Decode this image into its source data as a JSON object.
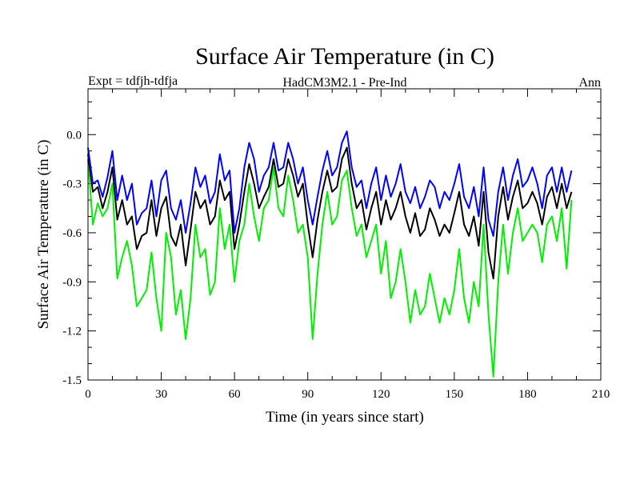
{
  "chart_data": {
    "type": "line",
    "title": "Surface Air Temperature (in C)",
    "subtitle_left": "Expt = tdfjh-tdfja",
    "subtitle_center": "HadCM3M2.1 - Pre-Ind",
    "subtitle_right": "Ann",
    "xlabel": "Time (in years since start)",
    "ylabel": "Surface Air Temperature (in C)",
    "xlim": [
      0,
      210
    ],
    "ylim": [
      -1.5,
      0.28
    ],
    "xticks": [
      0,
      30,
      60,
      90,
      120,
      150,
      180,
      210
    ],
    "yticks": [
      -1.5,
      -1.2,
      -0.9,
      -0.6,
      -0.3,
      0.0
    ],
    "ytick_labels": [
      "-1.5",
      "-1.2",
      "-0.9",
      "-0.6",
      "-0.3",
      "0.0"
    ],
    "x": [
      0,
      2,
      4,
      6,
      8,
      10,
      12,
      14,
      16,
      18,
      20,
      22,
      24,
      26,
      28,
      30,
      32,
      34,
      36,
      38,
      40,
      42,
      44,
      46,
      48,
      50,
      52,
      54,
      56,
      58,
      60,
      62,
      64,
      66,
      68,
      70,
      72,
      74,
      76,
      78,
      80,
      82,
      84,
      86,
      88,
      90,
      92,
      94,
      96,
      98,
      100,
      102,
      104,
      106,
      108,
      110,
      112,
      114,
      116,
      118,
      120,
      122,
      124,
      126,
      128,
      130,
      132,
      134,
      136,
      138,
      140,
      142,
      144,
      146,
      148,
      150,
      152,
      154,
      156,
      158,
      160,
      162,
      164,
      166,
      168,
      170,
      172,
      174,
      176,
      178,
      180,
      182,
      184,
      186,
      188,
      190,
      192,
      194,
      196,
      198
    ],
    "series": [
      {
        "name": "blue",
        "color": "#0000ff",
        "values": [
          -0.08,
          -0.3,
          -0.28,
          -0.38,
          -0.26,
          -0.1,
          -0.4,
          -0.25,
          -0.4,
          -0.3,
          -0.55,
          -0.48,
          -0.45,
          -0.28,
          -0.5,
          -0.28,
          -0.22,
          -0.45,
          -0.52,
          -0.4,
          -0.6,
          -0.42,
          -0.2,
          -0.32,
          -0.25,
          -0.42,
          -0.35,
          -0.12,
          -0.28,
          -0.22,
          -0.6,
          -0.45,
          -0.2,
          -0.05,
          -0.15,
          -0.35,
          -0.25,
          -0.2,
          -0.05,
          -0.22,
          -0.2,
          -0.05,
          -0.15,
          -0.3,
          -0.2,
          -0.4,
          -0.55,
          -0.38,
          -0.22,
          -0.1,
          -0.25,
          -0.2,
          -0.05,
          0.02,
          -0.2,
          -0.32,
          -0.28,
          -0.45,
          -0.3,
          -0.2,
          -0.4,
          -0.25,
          -0.38,
          -0.3,
          -0.18,
          -0.35,
          -0.42,
          -0.32,
          -0.45,
          -0.38,
          -0.28,
          -0.32,
          -0.45,
          -0.35,
          -0.4,
          -0.3,
          -0.18,
          -0.38,
          -0.45,
          -0.32,
          -0.5,
          -0.2,
          -0.52,
          -0.62,
          -0.35,
          -0.2,
          -0.4,
          -0.25,
          -0.15,
          -0.32,
          -0.28,
          -0.2,
          -0.3,
          -0.45,
          -0.25,
          -0.2,
          -0.35,
          -0.2,
          -0.35,
          -0.22
        ]
      },
      {
        "name": "black",
        "color": "#000000",
        "values": [
          -0.12,
          -0.35,
          -0.32,
          -0.45,
          -0.35,
          -0.2,
          -0.52,
          -0.4,
          -0.55,
          -0.5,
          -0.7,
          -0.62,
          -0.6,
          -0.4,
          -0.62,
          -0.45,
          -0.38,
          -0.62,
          -0.68,
          -0.55,
          -0.8,
          -0.58,
          -0.35,
          -0.45,
          -0.4,
          -0.55,
          -0.5,
          -0.28,
          -0.4,
          -0.35,
          -0.7,
          -0.55,
          -0.35,
          -0.18,
          -0.3,
          -0.45,
          -0.38,
          -0.32,
          -0.15,
          -0.32,
          -0.3,
          -0.15,
          -0.25,
          -0.38,
          -0.3,
          -0.55,
          -0.75,
          -0.52,
          -0.35,
          -0.22,
          -0.35,
          -0.32,
          -0.15,
          -0.08,
          -0.3,
          -0.45,
          -0.4,
          -0.58,
          -0.45,
          -0.35,
          -0.55,
          -0.4,
          -0.52,
          -0.45,
          -0.35,
          -0.5,
          -0.6,
          -0.48,
          -0.62,
          -0.58,
          -0.45,
          -0.52,
          -0.62,
          -0.55,
          -0.6,
          -0.48,
          -0.35,
          -0.55,
          -0.62,
          -0.5,
          -0.68,
          -0.35,
          -0.72,
          -0.88,
          -0.5,
          -0.32,
          -0.52,
          -0.38,
          -0.28,
          -0.45,
          -0.42,
          -0.35,
          -0.42,
          -0.55,
          -0.38,
          -0.32,
          -0.45,
          -0.3,
          -0.45,
          -0.35
        ]
      },
      {
        "name": "green",
        "color": "#00ee00",
        "values": [
          -0.15,
          -0.55,
          -0.42,
          -0.5,
          -0.45,
          -0.3,
          -0.88,
          -0.75,
          -0.65,
          -0.8,
          -1.05,
          -1.0,
          -0.95,
          -0.72,
          -1.0,
          -1.2,
          -0.6,
          -0.75,
          -1.1,
          -0.95,
          -1.25,
          -1.0,
          -0.55,
          -0.75,
          -0.7,
          -0.98,
          -0.9,
          -0.45,
          -0.7,
          -0.55,
          -0.9,
          -0.65,
          -0.55,
          -0.3,
          -0.5,
          -0.65,
          -0.45,
          -0.4,
          -0.2,
          -0.45,
          -0.5,
          -0.25,
          -0.4,
          -0.6,
          -0.55,
          -0.75,
          -1.25,
          -0.85,
          -0.55,
          -0.35,
          -0.55,
          -0.5,
          -0.28,
          -0.22,
          -0.45,
          -0.62,
          -0.55,
          -0.75,
          -0.65,
          -0.55,
          -0.85,
          -0.65,
          -1.0,
          -0.9,
          -0.7,
          -0.9,
          -1.15,
          -0.95,
          -1.1,
          -1.05,
          -0.85,
          -1.0,
          -1.15,
          -1.0,
          -1.1,
          -0.95,
          -0.7,
          -1.0,
          -1.15,
          -0.9,
          -1.05,
          -0.55,
          -1.1,
          -1.48,
          -0.9,
          -0.55,
          -0.85,
          -0.6,
          -0.45,
          -0.65,
          -0.6,
          -0.55,
          -0.6,
          -0.78,
          -0.55,
          -0.5,
          -0.65,
          -0.45,
          -0.82,
          -0.4
        ]
      }
    ]
  }
}
